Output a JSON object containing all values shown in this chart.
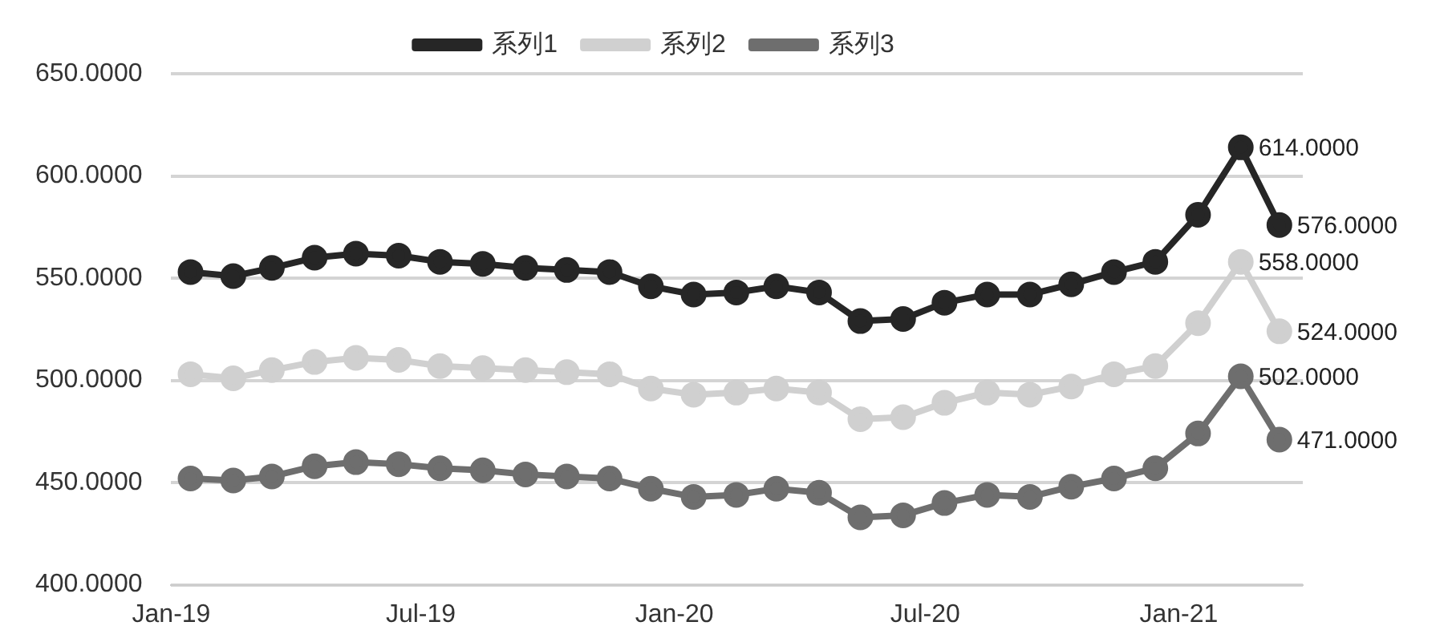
{
  "chart_data": {
    "type": "line",
    "x": [
      "2019-01-15",
      "2019-02-15",
      "2019-03-15",
      "2019-04-15",
      "2019-05-15",
      "2019-06-15",
      "2019-07-15",
      "2019-08-15",
      "2019-09-15",
      "2019-10-15",
      "2019-11-15",
      "2019-12-15",
      "2020-01-15",
      "2020-02-15",
      "2020-03-15",
      "2020-04-15",
      "2020-05-15",
      "2020-06-15",
      "2020-07-15",
      "2020-08-15",
      "2020-09-15",
      "2020-10-15",
      "2020-11-15",
      "2020-12-15",
      "2021-01-15",
      "2021-02-15",
      "2021-03-15"
    ],
    "series": [
      {
        "name": "系列1",
        "color": "#262626",
        "values": [
          553,
          551,
          555,
          560,
          562,
          561,
          558,
          557,
          555,
          554,
          553,
          546,
          542,
          543,
          546,
          543,
          529,
          530,
          538,
          542,
          542,
          547,
          553,
          558,
          581,
          614,
          576
        ],
        "value_labels": [
          null,
          null,
          null,
          null,
          null,
          null,
          null,
          null,
          null,
          null,
          null,
          null,
          null,
          null,
          null,
          null,
          null,
          null,
          null,
          null,
          null,
          null,
          null,
          null,
          null,
          "614.0000",
          "576.0000"
        ]
      },
      {
        "name": "系列2",
        "color": "#d0d0d0",
        "values": [
          503,
          501,
          505,
          509,
          511,
          510,
          507,
          506,
          505,
          504,
          503,
          496,
          493,
          494,
          496,
          494,
          481,
          482,
          489,
          494,
          493,
          497,
          503,
          507,
          528,
          558,
          524
        ],
        "value_labels": [
          null,
          null,
          null,
          null,
          null,
          null,
          null,
          null,
          null,
          null,
          null,
          null,
          null,
          null,
          null,
          null,
          null,
          null,
          null,
          null,
          null,
          null,
          null,
          null,
          null,
          "558.0000",
          "524.0000"
        ]
      },
      {
        "name": "系列3",
        "color": "#6e6e6e",
        "values": [
          452,
          451,
          453,
          458,
          460,
          459,
          457,
          456,
          454,
          453,
          452,
          447,
          443,
          444,
          447,
          445,
          433,
          434,
          440,
          444,
          443,
          448,
          452,
          457,
          474,
          502,
          471
        ],
        "value_labels": [
          null,
          null,
          null,
          null,
          null,
          null,
          null,
          null,
          null,
          null,
          null,
          null,
          null,
          null,
          null,
          null,
          null,
          null,
          null,
          null,
          null,
          null,
          null,
          null,
          null,
          "502.0000",
          "471.0000"
        ]
      }
    ],
    "xlim": [
      "2019-01-01",
      "2021-04-01"
    ],
    "xticks": [
      {
        "value": "2019-01-01",
        "label": "Jan-19"
      },
      {
        "value": "2019-07-01",
        "label": "Jul-19"
      },
      {
        "value": "2020-01-01",
        "label": "Jan-20"
      },
      {
        "value": "2020-07-01",
        "label": "Jul-20"
      },
      {
        "value": "2021-01-01",
        "label": "Jan-21"
      }
    ],
    "ylim": [
      400,
      650
    ],
    "yticks": [
      {
        "value": 400,
        "label": "400.0000"
      },
      {
        "value": 450,
        "label": "450.0000"
      },
      {
        "value": 500,
        "label": "500.0000"
      },
      {
        "value": 550,
        "label": "550.0000"
      },
      {
        "value": 600,
        "label": "600.0000"
      },
      {
        "value": 650,
        "label": "650.0000"
      }
    ],
    "grid": "y",
    "legend": "top",
    "marker": "circle",
    "line_style": "solid"
  }
}
